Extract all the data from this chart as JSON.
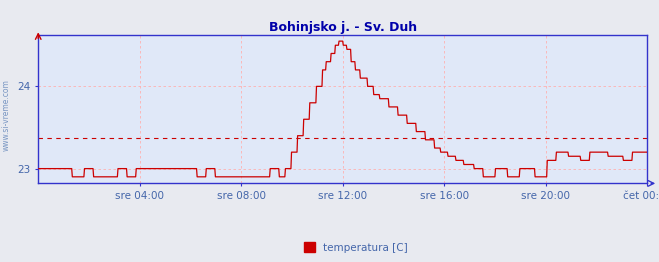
{
  "title": "Bohinjsko j. - Sv. Duh",
  "watermark": "www.si-vreme.com",
  "legend_label": "temperatura [C]",
  "legend_color": "#cc0000",
  "background_color": "#e8eaf0",
  "plot_bg_color": "#e0e8f8",
  "line_color": "#cc0000",
  "avg_line_color": "#cc0000",
  "grid_color": "#ffb0b0",
  "title_color": "#0000aa",
  "axis_label_color": "#4466aa",
  "border_bottom_color": "#3333cc",
  "border_other_color": "#3333cc",
  "ylim_min": 22.82,
  "ylim_max": 24.62,
  "yticks": [
    23,
    24
  ],
  "xtick_labels": [
    "sre 04:00",
    "sre 08:00",
    "sre 12:00",
    "sre 16:00",
    "sre 20:00",
    "čet 00:00"
  ],
  "xtick_pos": [
    0.1667,
    0.3333,
    0.5,
    0.6667,
    0.8333,
    1.0
  ],
  "avg_value": 23.37,
  "step_t": [
    0.0,
    0.055,
    0.056,
    0.075,
    0.076,
    0.09,
    0.091,
    0.13,
    0.131,
    0.145,
    0.146,
    0.16,
    0.161,
    0.26,
    0.261,
    0.275,
    0.276,
    0.29,
    0.291,
    0.38,
    0.381,
    0.395,
    0.396,
    0.405,
    0.406,
    0.415,
    0.416,
    0.425,
    0.426,
    0.435,
    0.436,
    0.445,
    0.446,
    0.456,
    0.457,
    0.466,
    0.467,
    0.472,
    0.473,
    0.48,
    0.481,
    0.487,
    0.488,
    0.493,
    0.494,
    0.5,
    0.501,
    0.506,
    0.507,
    0.513,
    0.514,
    0.52,
    0.521,
    0.528,
    0.529,
    0.54,
    0.541,
    0.55,
    0.551,
    0.56,
    0.561,
    0.575,
    0.576,
    0.59,
    0.591,
    0.605,
    0.606,
    0.62,
    0.621,
    0.635,
    0.636,
    0.65,
    0.651,
    0.66,
    0.661,
    0.672,
    0.673,
    0.685,
    0.686,
    0.698,
    0.699,
    0.715,
    0.716,
    0.73,
    0.731,
    0.75,
    0.751,
    0.77,
    0.771,
    0.79,
    0.791,
    0.815,
    0.816,
    0.835,
    0.836,
    0.85,
    0.851,
    0.87,
    0.871,
    0.89,
    0.891,
    0.905,
    0.906,
    0.935,
    0.936,
    0.96,
    0.961,
    0.975,
    0.976,
    1.0
  ],
  "step_v": [
    23.0,
    23.0,
    22.9,
    22.9,
    23.0,
    23.0,
    22.9,
    22.9,
    23.0,
    23.0,
    22.9,
    22.9,
    23.0,
    23.0,
    22.9,
    22.9,
    23.0,
    23.0,
    22.9,
    22.9,
    23.0,
    23.0,
    22.9,
    22.9,
    23.0,
    23.0,
    23.2,
    23.2,
    23.4,
    23.4,
    23.6,
    23.6,
    23.8,
    23.8,
    24.0,
    24.0,
    24.2,
    24.2,
    24.3,
    24.3,
    24.4,
    24.4,
    24.5,
    24.5,
    24.55,
    24.55,
    24.5,
    24.5,
    24.45,
    24.45,
    24.3,
    24.3,
    24.2,
    24.2,
    24.1,
    24.1,
    24.0,
    24.0,
    23.9,
    23.9,
    23.85,
    23.85,
    23.75,
    23.75,
    23.65,
    23.65,
    23.55,
    23.55,
    23.45,
    23.45,
    23.35,
    23.35,
    23.25,
    23.25,
    23.2,
    23.2,
    23.15,
    23.15,
    23.1,
    23.1,
    23.05,
    23.05,
    23.0,
    23.0,
    22.9,
    22.9,
    23.0,
    23.0,
    22.9,
    22.9,
    23.0,
    23.0,
    22.9,
    22.9,
    23.1,
    23.1,
    23.2,
    23.2,
    23.15,
    23.15,
    23.1,
    23.1,
    23.2,
    23.2,
    23.15,
    23.15,
    23.1,
    23.1,
    23.2,
    23.2
  ]
}
